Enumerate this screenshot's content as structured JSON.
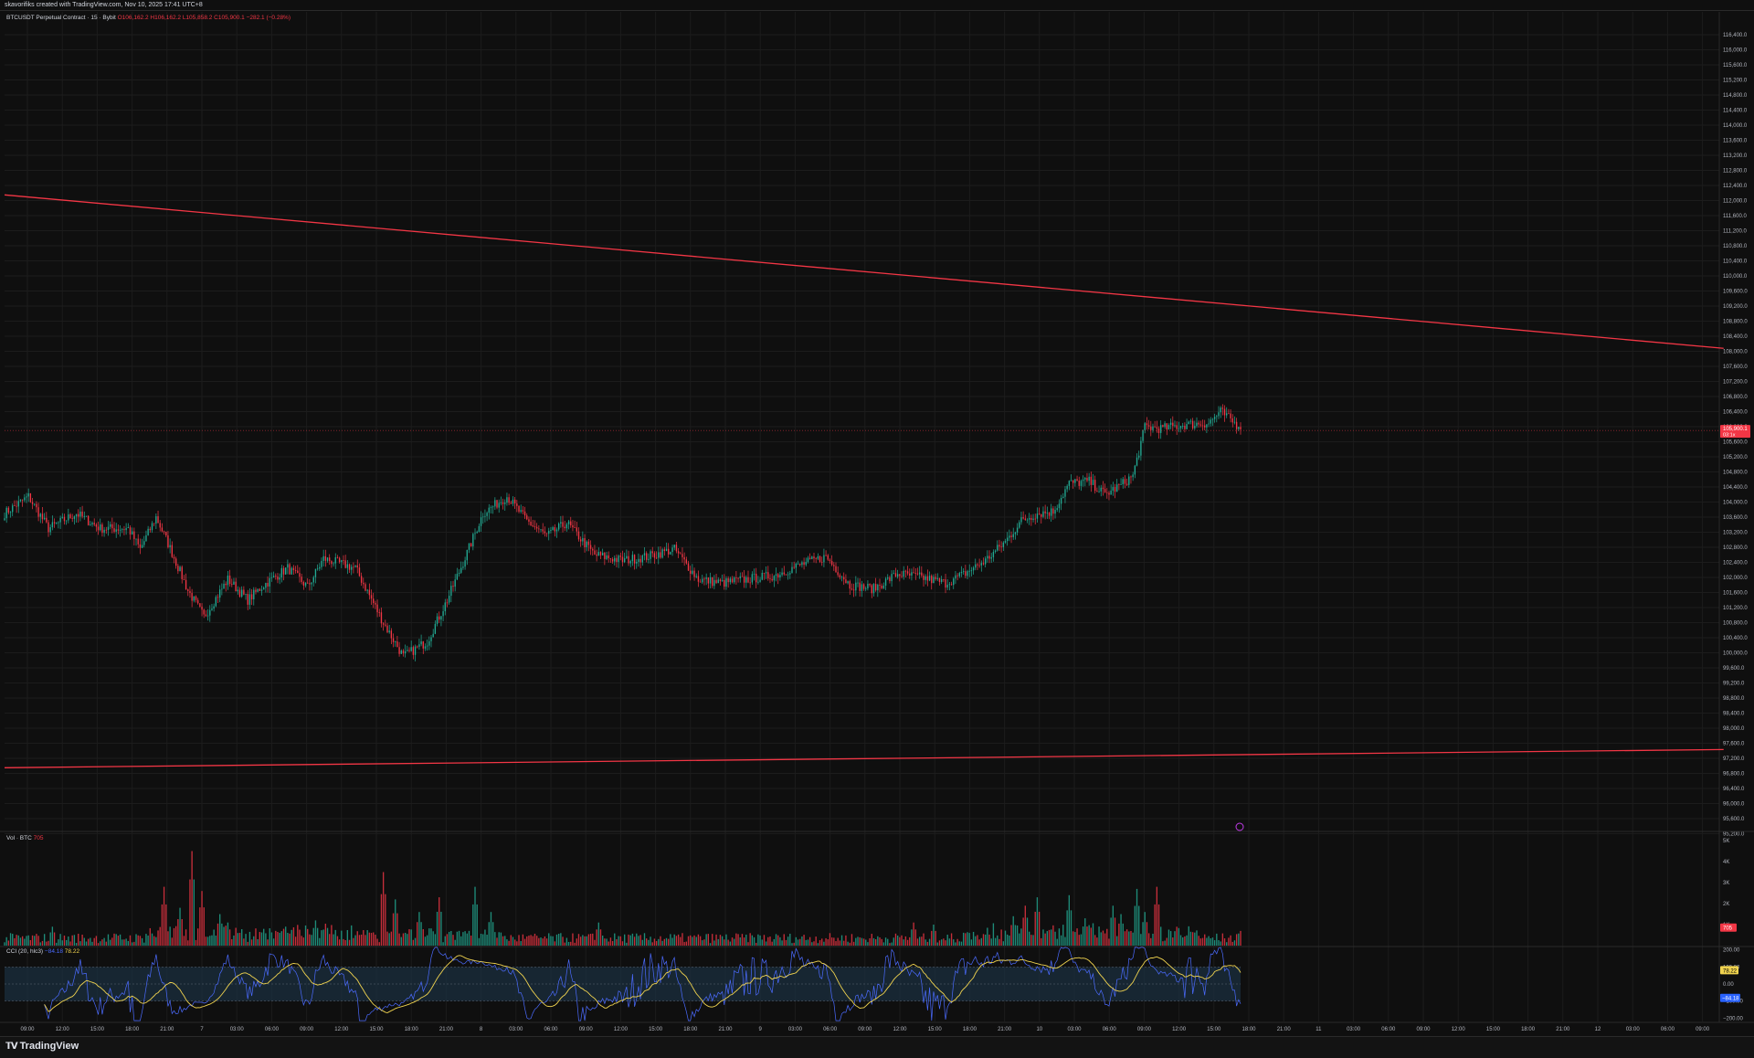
{
  "header": {
    "caption": "skavorifiks created with TradingView.com, Nov 10, 2025 17:41 UTC+8"
  },
  "legend": {
    "symbol": "BTCUSDT Perpetual Contract · 15 · Bybit",
    "ohlc": "O106,162.2 H106,162.2 L105,858.2 C105,900.1 −282.1 (−0.28%)",
    "volume_label": "Vol · BTC",
    "volume_value": "705",
    "cci_label": "CCI (20, hlc3)",
    "cci_value": "−84.18",
    "cci_ma_value": "78.22"
  },
  "brand": {
    "name": "TradingView",
    "logo": "tradingview-logo"
  },
  "colors": {
    "background": "#0f0f0f",
    "grid": "#1c1c1c",
    "up": "#22ab94",
    "down": "#f23645",
    "trendline": "#f23645",
    "cci": "#4b6bff",
    "cci_ma": "#f0d34f",
    "cci_band": "#1b3142",
    "axis_text": "#b2b5be"
  },
  "chart_data": [
    {
      "type": "candlestick",
      "title": "BTCUSDT Perpetual Contract · 15 · Bybit",
      "ylim": [
        95000,
        116800
      ],
      "y_ticks": [
        "116,400.0",
        "116,000.0",
        "115,600.0",
        "115,200.0",
        "114,800.0",
        "114,400.0",
        "114,000.0",
        "113,600.0",
        "113,200.0",
        "112,800.0",
        "112,400.0",
        "112,000.0",
        "111,600.0",
        "111,200.0",
        "110,800.0",
        "110,400.0",
        "110,000.0",
        "109,600.0",
        "109,200.0",
        "108,800.0",
        "108,400.0",
        "108,000.0",
        "107,600.0",
        "107,200.0",
        "106,800.0",
        "106,400.0",
        "106,000.0",
        "105,600.0",
        "105,200.0",
        "104,800.0",
        "104,400.0",
        "104,000.0",
        "103,600.0",
        "103,200.0",
        "102,800.0",
        "102,400.0",
        "102,000.0",
        "101,600.0",
        "101,200.0",
        "100,800.0",
        "100,400.0",
        "100,000.0",
        "99,600.0",
        "99,200.0",
        "98,800.0",
        "98,400.0",
        "98,000.0",
        "97,600.0",
        "97,200.0",
        "96,800.0",
        "96,400.0",
        "96,000.0",
        "95,600.0",
        "95,200.0"
      ],
      "x_ticks": [
        "09:00",
        "12:00",
        "15:00",
        "18:00",
        "21:00",
        "7",
        "03:00",
        "06:00",
        "09:00",
        "12:00",
        "15:00",
        "18:00",
        "21:00",
        "8",
        "03:00",
        "06:00",
        "09:00",
        "12:00",
        "15:00",
        "18:00",
        "21:00",
        "9",
        "03:00",
        "06:00",
        "09:00",
        "12:00",
        "15:00",
        "18:00",
        "21:00",
        "10",
        "03:00",
        "06:00",
        "09:00",
        "12:00",
        "15:00",
        "18:00",
        "21:00",
        "11",
        "03:00",
        "06:00",
        "09:00",
        "12:00",
        "15:00",
        "18:00",
        "21:00",
        "12",
        "03:00",
        "06:00",
        "09:00"
      ],
      "price_anchors": [
        [
          0,
          103700
        ],
        [
          12,
          104150
        ],
        [
          22,
          103300
        ],
        [
          36,
          103700
        ],
        [
          48,
          103300
        ],
        [
          62,
          103300
        ],
        [
          68,
          102750
        ],
        [
          76,
          103600
        ],
        [
          82,
          102900
        ],
        [
          92,
          101650
        ],
        [
          100,
          100950
        ],
        [
          112,
          101950
        ],
        [
          122,
          101400
        ],
        [
          130,
          101800
        ],
        [
          142,
          102250
        ],
        [
          152,
          101750
        ],
        [
          160,
          102500
        ],
        [
          176,
          102250
        ],
        [
          190,
          100800
        ],
        [
          200,
          99900
        ],
        [
          212,
          100300
        ],
        [
          222,
          101400
        ],
        [
          232,
          102650
        ],
        [
          240,
          103700
        ],
        [
          252,
          104150
        ],
        [
          262,
          103500
        ],
        [
          272,
          103100
        ],
        [
          282,
          103450
        ],
        [
          296,
          102600
        ],
        [
          310,
          102450
        ],
        [
          322,
          102550
        ],
        [
          336,
          102750
        ],
        [
          348,
          101950
        ],
        [
          360,
          101850
        ],
        [
          372,
          101950
        ],
        [
          386,
          102050
        ],
        [
          400,
          102350
        ],
        [
          412,
          102550
        ],
        [
          424,
          101800
        ],
        [
          436,
          101700
        ],
        [
          448,
          102100
        ],
        [
          460,
          102000
        ],
        [
          472,
          101850
        ],
        [
          480,
          102050
        ],
        [
          492,
          102450
        ],
        [
          502,
          102950
        ],
        [
          510,
          103500
        ],
        [
          518,
          103700
        ],
        [
          526,
          103750
        ],
        [
          534,
          104500
        ],
        [
          544,
          104550
        ],
        [
          552,
          104200
        ],
        [
          560,
          104450
        ],
        [
          566,
          104700
        ],
        [
          572,
          106000
        ],
        [
          580,
          105950
        ],
        [
          592,
          106050
        ],
        [
          604,
          106100
        ],
        [
          610,
          106400
        ],
        [
          618,
          106050
        ]
      ],
      "last_price": "105,900.1",
      "countdown": "03:1x",
      "trendlines": [
        {
          "from": [
            0,
            112150
          ],
          "to": [
            624,
            109200
          ]
        },
        {
          "from": [
            0,
            96950
          ],
          "to": [
            624,
            97300
          ]
        }
      ]
    },
    {
      "type": "bar",
      "title": "Vol · BTC",
      "ylim": [
        0,
        5000
      ],
      "y_ticks": [
        "5K",
        "4K",
        "3K",
        "2K",
        "1K"
      ],
      "last_value": "705",
      "spikes": [
        [
          24,
          900
        ],
        [
          80,
          2800
        ],
        [
          88,
          1800
        ],
        [
          94,
          4500
        ],
        [
          99,
          2600
        ],
        [
          108,
          1500
        ],
        [
          112,
          1100
        ],
        [
          156,
          1200
        ],
        [
          190,
          3500
        ],
        [
          196,
          2200
        ],
        [
          208,
          1600
        ],
        [
          218,
          2300
        ],
        [
          236,
          2800
        ],
        [
          244,
          1600
        ],
        [
          298,
          1100
        ],
        [
          456,
          1100
        ],
        [
          466,
          1000
        ],
        [
          506,
          1400
        ],
        [
          512,
          1900
        ],
        [
          518,
          2300
        ],
        [
          534,
          2400
        ],
        [
          542,
          1300
        ],
        [
          556,
          1900
        ],
        [
          560,
          1500
        ],
        [
          568,
          2700
        ],
        [
          572,
          1600
        ],
        [
          578,
          2800
        ],
        [
          588,
          900
        ],
        [
          620,
          700
        ]
      ]
    },
    {
      "type": "line",
      "title": "CCI (20, hlc3)",
      "ylim": [
        -220,
        220
      ],
      "y_ticks": [
        "200.00",
        "100.00",
        "0.00",
        "−100.00",
        "−200.00"
      ],
      "band": [
        -100,
        100
      ],
      "series": [
        {
          "name": "CCI",
          "last": "−84.18"
        },
        {
          "name": "MA",
          "last": "78.22"
        }
      ]
    }
  ]
}
